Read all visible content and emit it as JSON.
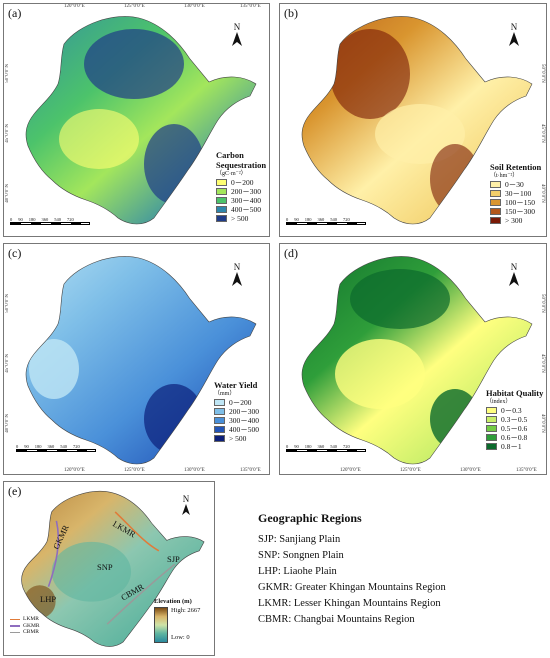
{
  "coords": {
    "top": [
      "120°0′0″E",
      "125°0′0″E",
      "130°0′0″E",
      "135°0′0″E"
    ],
    "left": [
      "50°0′0″N",
      "45°0′0″N",
      "40°0′0″N"
    ]
  },
  "north_letter": "N",
  "scale_ticks": [
    "0",
    "90",
    "180",
    "360",
    "540",
    "720"
  ],
  "panels": {
    "a": {
      "label": "(a)",
      "legend_title": "Carbon Sequestration",
      "legend_unit": "（gC·m⁻²）",
      "classes": [
        {
          "label": "0－200",
          "color": "#ffff73"
        },
        {
          "label": "200－300",
          "color": "#a3e65c"
        },
        {
          "label": "300－400",
          "color": "#4cc36b"
        },
        {
          "label": "400－500",
          "color": "#2e86ab"
        },
        {
          "label": "> 500",
          "color": "#1f3c88"
        }
      ]
    },
    "b": {
      "label": "(b)",
      "legend_title": "Soil Retention",
      "legend_unit": "（t·hm⁻²）",
      "classes": [
        {
          "label": "0－30",
          "color": "#fff0a8"
        },
        {
          "label": "30－100",
          "color": "#f2cf6b"
        },
        {
          "label": "100－150",
          "color": "#d9952f"
        },
        {
          "label": "150－300",
          "color": "#b4571a"
        },
        {
          "label": "> 300",
          "color": "#7a1a06"
        }
      ]
    },
    "c": {
      "label": "(c)",
      "legend_title": "Water Yield",
      "legend_unit": "（mm）",
      "classes": [
        {
          "label": "0－200",
          "color": "#bfe6f5"
        },
        {
          "label": "200－300",
          "color": "#7fbfe8"
        },
        {
          "label": "300－400",
          "color": "#4a90d9"
        },
        {
          "label": "400－500",
          "color": "#2355b8"
        },
        {
          "label": "> 500",
          "color": "#0c1f7a"
        }
      ]
    },
    "d": {
      "label": "(d)",
      "legend_title": "Habitat Quality",
      "legend_unit": "（index）",
      "classes": [
        {
          "label": "0－0.3",
          "color": "#ffff80"
        },
        {
          "label": "0.3－0.5",
          "color": "#c9ef6a"
        },
        {
          "label": "0.5－0.6",
          "color": "#73cc45"
        },
        {
          "label": "0.6－0.8",
          "color": "#2f9e3a"
        },
        {
          "label": "0.8－1",
          "color": "#0b6a2c"
        }
      ]
    },
    "e": {
      "label": "(e)",
      "regions": [
        "GKMR",
        "LKMR",
        "SNP",
        "SJP",
        "LHP",
        "CBMR"
      ],
      "line_legend": [
        {
          "label": "LKMR",
          "color": "#e07b39"
        },
        {
          "label": "GKMR",
          "color": "#8e6dbf"
        },
        {
          "label": "CBMR",
          "color": "#9a9a9a"
        }
      ],
      "elevation_title": "Elevation (m)",
      "elevation_high": "High: 2667",
      "elevation_low": "Low: 0"
    }
  },
  "geographic_regions": {
    "title": "Geographic Regions",
    "items": [
      "SJP: Sanjiang Plain",
      "SNP: Songnen Plain",
      "LHP: Liaohe Plain",
      "GKMR: Greater Khingan Mountains Region",
      "LKMR: Lesser Khingan Mountains Region",
      "CBMR: Changbai Mountains Region"
    ]
  }
}
